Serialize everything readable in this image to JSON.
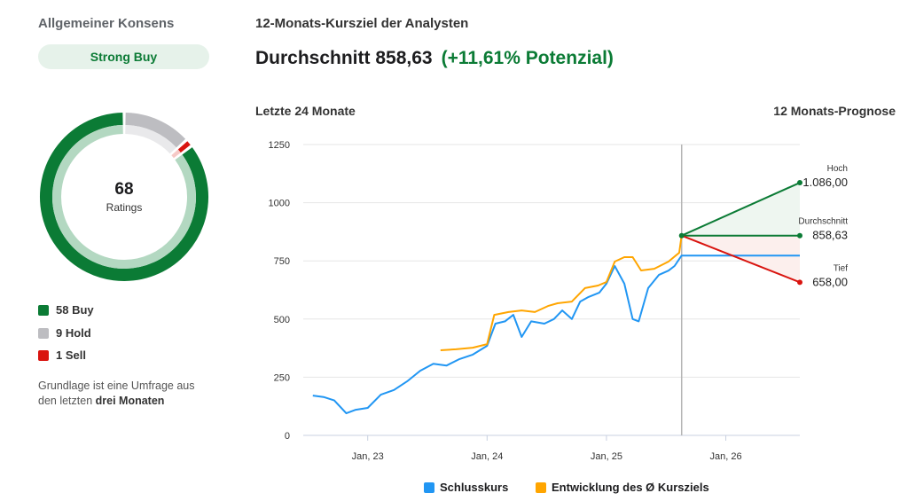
{
  "consensus": {
    "title": "Allgemeiner Konsens",
    "badge": "Strong Buy",
    "total": "68",
    "total_label": "Ratings",
    "segments": [
      {
        "label": "9 Hold",
        "count": 9,
        "color": "#bdbdc1",
        "light": "#e9e9eb"
      },
      {
        "label": "1 Sell",
        "count": 1,
        "color": "#d9140f",
        "light": "#f6c9c6"
      },
      {
        "label": "58 Buy",
        "count": 58,
        "color": "#0b7b35",
        "light": "#b3d8c1"
      }
    ],
    "legend": [
      {
        "label": "58 Buy",
        "color": "#0b7b35"
      },
      {
        "label": "9 Hold",
        "color": "#bdbdc1"
      },
      {
        "label": "1 Sell",
        "color": "#d9140f"
      }
    ],
    "note_prefix": "Grundlage ist eine Umfrage aus den letzten ",
    "note_bold": "drei Monaten"
  },
  "target": {
    "title": "12-Monats-Kursziel der Analysten",
    "average": "Durchschnitt 858,63",
    "potential": "(+11,61% Potenzial)",
    "left_label": "Letzte 24 Monate",
    "right_label": "12 Monats-Prognose"
  },
  "chart_data": {
    "type": "line",
    "ylim": [
      0,
      1250
    ],
    "yticks": [
      "0",
      "250",
      "500",
      "750",
      "1000",
      "1250"
    ],
    "ytick_values": [
      0,
      250,
      500,
      750,
      1000,
      1250
    ],
    "xticks": [
      "Jan, 23",
      "Jan, 24",
      "Jan, 25",
      "Jan, 26"
    ],
    "xtick_values": [
      2023.0,
      2024.0,
      2025.0,
      2026.0
    ],
    "xlim": [
      2022.46,
      2026.62
    ],
    "grid": true,
    "legend_position": "bottom",
    "divider_x": 2025.63,
    "series": [
      {
        "name": "Schlusskurs",
        "color": "#2196f3",
        "x": [
          2022.54,
          2022.63,
          2022.72,
          2022.82,
          2022.9,
          2023.0,
          2023.11,
          2023.22,
          2023.33,
          2023.44,
          2023.55,
          2023.66,
          2023.77,
          2023.88,
          2024.0,
          2024.07,
          2024.15,
          2024.22,
          2024.29,
          2024.37,
          2024.48,
          2024.56,
          2024.63,
          2024.71,
          2024.78,
          2024.85,
          2024.94,
          2025.0,
          2025.07,
          2025.15,
          2025.22,
          2025.27,
          2025.35,
          2025.44,
          2025.52,
          2025.57,
          2025.63,
          2026.62
        ],
        "y": [
          171,
          165,
          150,
          95,
          110,
          118,
          175,
          195,
          232,
          278,
          308,
          300,
          328,
          347,
          385,
          480,
          490,
          518,
          423,
          490,
          480,
          500,
          537,
          500,
          575,
          595,
          613,
          652,
          728,
          652,
          500,
          490,
          633,
          690,
          708,
          728,
          773,
          773
        ]
      },
      {
        "name": "Entwicklung des Ø Kursziels",
        "color": "#ffa500",
        "x": [
          2023.61,
          2023.74,
          2023.88,
          2024.0,
          2024.06,
          2024.18,
          2024.29,
          2024.4,
          2024.51,
          2024.59,
          2024.71,
          2024.82,
          2024.93,
          2025.0,
          2025.07,
          2025.15,
          2025.22,
          2025.29,
          2025.4,
          2025.52,
          2025.61,
          2025.63
        ],
        "y": [
          366,
          370,
          377,
          392,
          518,
          530,
          537,
          530,
          556,
          568,
          575,
          633,
          644,
          659,
          747,
          766,
          766,
          709,
          716,
          747,
          785,
          858.63
        ]
      }
    ],
    "forecast": {
      "start_x": 2025.63,
      "end_x": 2026.62,
      "start_y": 858.63,
      "points": [
        {
          "label": "Hoch",
          "value_label": "1.086,00",
          "value": 1086.0,
          "color": "#0b7b35"
        },
        {
          "label": "Durchschnitt",
          "value_label": "858,63",
          "value": 858.63,
          "color": "#0b7b35"
        },
        {
          "label": "Tief",
          "value_label": "658,00",
          "value": 658.0,
          "color": "#d9140f"
        }
      ]
    }
  }
}
